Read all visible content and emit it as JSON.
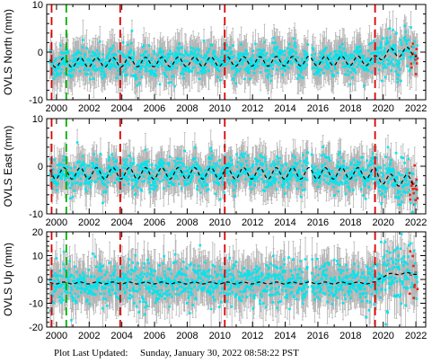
{
  "footer": {
    "label": "Plot Last Updated:",
    "value": "Sunday, January 30, 2022 08:58:22 PST"
  },
  "colors": {
    "error_bars": "#b4b4b4",
    "daily_points": "#00e5ee",
    "recent_points": "#e8261c",
    "model_line": "#000000",
    "red_event": "#dd0000",
    "green_event": "#00b000"
  },
  "chart_data": [
    {
      "type": "scatter",
      "ylabel": "OVLS North (mm)",
      "xlim": [
        1999.4,
        2022.6
      ],
      "ylim": [
        -10,
        10
      ],
      "yticks": [
        -10,
        0,
        10
      ],
      "xticks": [
        2000,
        2002,
        2004,
        2006,
        2008,
        2010,
        2012,
        2014,
        2016,
        2018,
        2020,
        2022
      ],
      "red_events": [
        1999.7,
        2003.9,
        2010.3,
        2019.5
      ],
      "green_events": [
        2000.6
      ],
      "data_start": 1999.6,
      "data_end": 2022.1,
      "gap": [
        2015.4,
        2015.6
      ],
      "model": {
        "offset": -2.0,
        "slope": 0.02,
        "amplitude": 1.0,
        "step_year": 2019.5,
        "step": 1.8
      },
      "scatter_sd": 1.6,
      "errorbar_sd": 3.5
    },
    {
      "type": "scatter",
      "ylabel": "OVLS East (mm)",
      "xlim": [
        1999.4,
        2022.6
      ],
      "ylim": [
        -10,
        10
      ],
      "yticks": [
        -10,
        0,
        10
      ],
      "xticks": [
        2000,
        2002,
        2004,
        2006,
        2008,
        2010,
        2012,
        2014,
        2016,
        2018,
        2020,
        2022
      ],
      "red_events": [
        1999.7,
        2003.9,
        2010.3,
        2019.5
      ],
      "green_events": [
        2000.6
      ],
      "data_start": 1999.6,
      "data_end": 2022.1,
      "gap": [
        2015.4,
        2015.6
      ],
      "model": {
        "offset": -1.5,
        "slope": 0.0,
        "amplitude": 1.2,
        "step_year": 2019.5,
        "step": -1.5
      },
      "scatter_sd": 1.7,
      "errorbar_sd": 3.3
    },
    {
      "type": "scatter",
      "ylabel": "OVLS Up (mm)",
      "xlim": [
        1999.4,
        2022.6
      ],
      "ylim": [
        -20,
        20
      ],
      "yticks": [
        -20,
        -10,
        0,
        10,
        20
      ],
      "xticks": [
        2000,
        2002,
        2004,
        2006,
        2008,
        2010,
        2012,
        2014,
        2016,
        2018,
        2020,
        2022
      ],
      "red_events": [
        1999.7,
        2003.9,
        2010.3,
        2019.5
      ],
      "green_events": [
        2000.6
      ],
      "data_start": 1999.6,
      "data_end": 2022.1,
      "gap": [
        2015.4,
        2015.6
      ],
      "model": {
        "offset": -1.5,
        "slope": 0.0,
        "amplitude": 0.4,
        "step_year": 2019.5,
        "step": 4.0
      },
      "scatter_sd": 4.5,
      "errorbar_sd": 8.0
    }
  ]
}
